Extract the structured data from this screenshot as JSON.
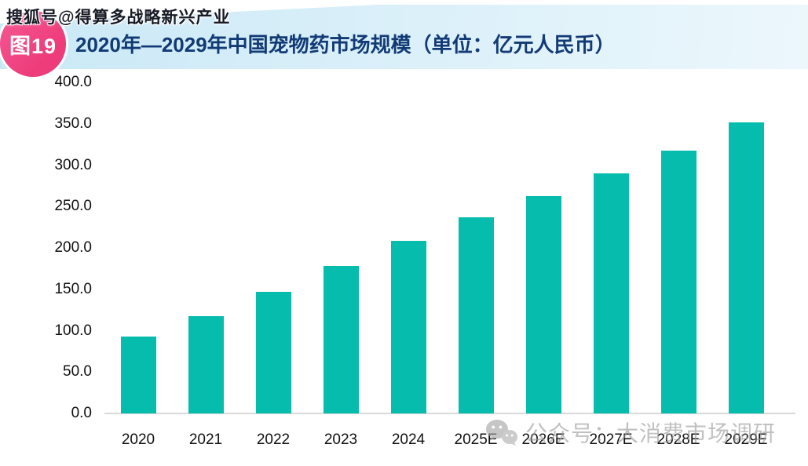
{
  "header": {
    "figure_badge": "图19",
    "title": "2020年—2029年中国宠物药市场规模（单位：亿元人民币）"
  },
  "watermarks": {
    "sohu": "搜狐号@得算多战略新兴产业",
    "bottom_text": "公众号：大消费市场调研",
    "bottom_icon": "wechat-icon"
  },
  "chart_data": {
    "type": "bar",
    "title": "2020年—2029年中国宠物药市场规模",
    "unit_label": "单位：亿元人民币",
    "categories": [
      "2020",
      "2021",
      "2022",
      "2023",
      "2024",
      "2025E",
      "2026E",
      "2027E",
      "2028E",
      "2029E"
    ],
    "values": [
      93,
      118,
      147,
      178,
      209,
      237,
      263,
      290,
      318,
      352
    ],
    "ylim": [
      0,
      400
    ],
    "ytick_step": 50,
    "ytick_labels": [
      "0.0",
      "50.0",
      "100.0",
      "150.0",
      "200.0",
      "250.0",
      "300.0",
      "350.0",
      "400.0"
    ],
    "xlabel": "",
    "ylabel": "",
    "grid": false,
    "legend": null,
    "bar_color": "#05bcad"
  },
  "colors": {
    "bar": "#05bcad",
    "band_left": "#c9e8f6",
    "band_right": "#ecf7fc",
    "title_text": "#123a75",
    "badge_pink": "#ee3c7b",
    "axis_line": "#d9d9d9",
    "axis_text": "#111111",
    "watermark_gray": "#9b9b9b"
  }
}
